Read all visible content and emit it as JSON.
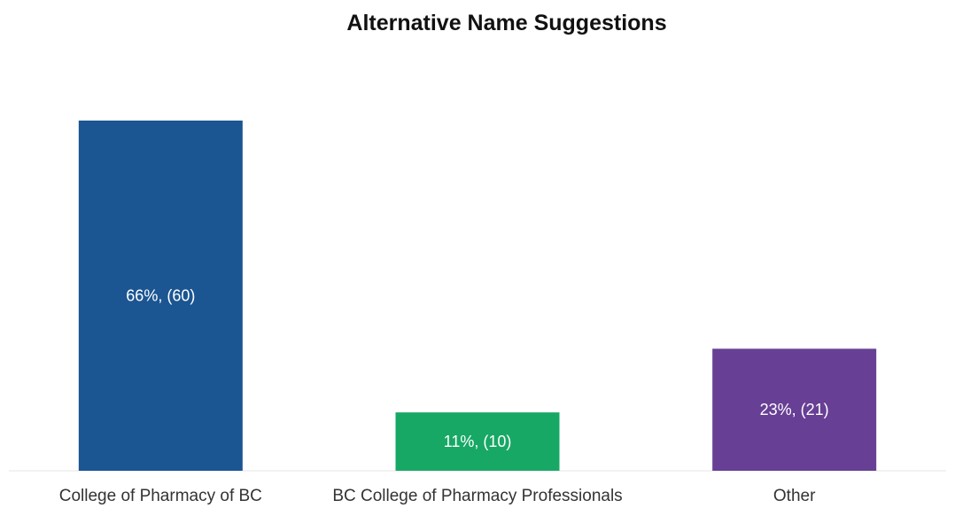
{
  "chart_data": {
    "type": "bar",
    "title": "Alternative Name Suggestions",
    "xlabel": "",
    "ylabel": "",
    "ylim": [
      0,
      70
    ],
    "categories": [
      "College of Pharmacy of BC",
      "BC College of Pharmacy Professionals",
      "Other"
    ],
    "values": [
      66,
      11,
      23
    ],
    "counts": [
      60,
      10,
      21
    ],
    "data_labels": [
      "66%, (60)",
      "11%, (10)",
      "23%, (21)"
    ],
    "colors": [
      "#1B5592",
      "#17A865",
      "#673F94"
    ],
    "grid": false,
    "legend": "none"
  }
}
